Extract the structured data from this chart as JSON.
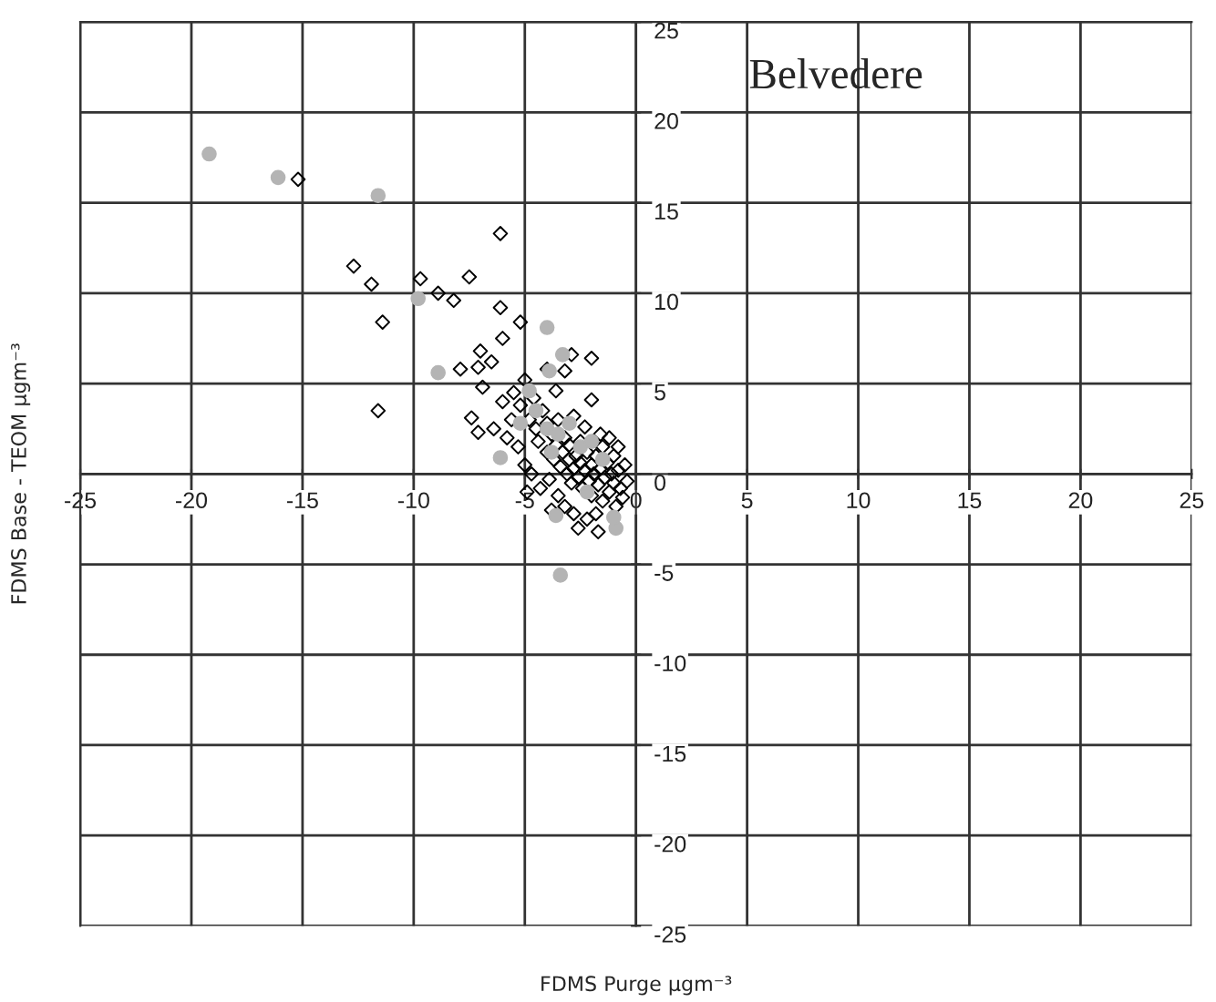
{
  "chart_data": {
    "type": "scatter",
    "title": "Belvedere",
    "xlabel": "FDMS Purge µgm⁻³",
    "ylabel": "FDMS Base - TEOM µgm⁻³",
    "xlim": [
      -25,
      25
    ],
    "ylim": [
      -25,
      25
    ],
    "xticks": [
      -25,
      -20,
      -15,
      -10,
      -5,
      0,
      5,
      10,
      15,
      20,
      25
    ],
    "yticks": [
      -25,
      -20,
      -15,
      -10,
      -5,
      0,
      5,
      10,
      15,
      20,
      25
    ],
    "grid": true,
    "series": [
      {
        "color": "#000000",
        "marker": "diamond",
        "x": [
          -15.2,
          -6.1,
          -12.7,
          -11.9,
          -11.4,
          -11.6,
          -9.7,
          -8.9,
          -8.2,
          -7.5,
          -6.1,
          -5.2,
          -6.0,
          -7.0,
          -6.5,
          -7.1,
          -7.9,
          -6.9,
          -7.4,
          -7.1,
          -6.4,
          -2.9,
          -2.0,
          -2.0,
          -3.2,
          -1.7,
          -5.5,
          -5.2,
          -5.0,
          -4.8,
          -4.6,
          -4.5,
          -4.4,
          -4.2,
          -4.0,
          -4.0,
          -3.8,
          -3.7,
          -3.6,
          -3.5,
          -3.4,
          -3.3,
          -3.2,
          -3.1,
          -3.0,
          -3.0,
          -2.9,
          -2.8,
          -2.7,
          -2.6,
          -2.5,
          -2.5,
          -2.4,
          -2.3,
          -2.2,
          -2.1,
          -2.0,
          -2.0,
          -1.9,
          -1.8,
          -1.7,
          -1.6,
          -1.5,
          -1.5,
          -1.4,
          -1.3,
          -1.2,
          -1.1,
          -1.0,
          -1.0,
          -0.9,
          -0.8,
          -0.7,
          -0.6,
          -0.5,
          -0.4,
          -6.0,
          -5.8,
          -5.3,
          -5.0,
          -4.7,
          -4.3,
          -3.9,
          -3.5,
          -3.2,
          -2.8,
          -2.2,
          -4.0,
          -3.6,
          -2.8,
          -2.3,
          -1.6,
          -1.2,
          -0.8,
          -5.6,
          -4.9,
          -3.8,
          -2.6,
          -1.8
        ],
        "values": [
          16.3,
          13.3,
          11.5,
          10.5,
          8.4,
          3.5,
          10.8,
          10.0,
          9.6,
          10.9,
          9.2,
          8.4,
          7.5,
          6.8,
          6.2,
          5.9,
          5.8,
          4.8,
          3.1,
          2.3,
          2.5,
          6.6,
          6.4,
          4.1,
          5.7,
          -3.2,
          4.5,
          3.8,
          5.2,
          3.0,
          4.2,
          2.5,
          1.8,
          3.5,
          2.8,
          1.2,
          2.2,
          0.8,
          1.6,
          3.0,
          0.4,
          1.2,
          2.0,
          0.0,
          0.8,
          1.6,
          -0.5,
          0.3,
          1.0,
          -0.2,
          0.6,
          1.8,
          -0.8,
          0.2,
          1.2,
          -0.4,
          0.5,
          -1.2,
          0.0,
          1.0,
          -0.6,
          0.3,
          -1.5,
          1.5,
          -0.2,
          0.6,
          -1.0,
          0.0,
          -0.5,
          1.0,
          -1.8,
          0.2,
          -0.8,
          -1.3,
          0.5,
          -0.4,
          4.0,
          2.0,
          1.5,
          0.5,
          0.0,
          -0.8,
          -0.3,
          -1.2,
          -1.8,
          -2.2,
          -2.5,
          5.8,
          4.6,
          3.2,
          2.6,
          2.2,
          2.0,
          1.5,
          3.0,
          -1.0,
          -2.0,
          -3.0,
          -2.2
        ]
      },
      {
        "color": "#b4b4b4",
        "marker": "circle",
        "x": [
          -19.2,
          -16.1,
          -11.6,
          -9.8,
          -4.0,
          -8.9,
          -6.1,
          -3.3,
          -3.9,
          -3.4,
          -0.9,
          -3.6,
          -4.5,
          -4.0,
          -3.5,
          -3.0,
          -2.5,
          -2.0,
          -3.8,
          -1.5,
          -4.8,
          -2.2,
          -1.0,
          -5.2
        ],
        "values": [
          17.7,
          16.4,
          15.4,
          9.7,
          8.1,
          5.6,
          0.9,
          6.6,
          5.7,
          -5.6,
          -3.0,
          -2.3,
          3.5,
          2.5,
          2.2,
          2.8,
          1.5,
          1.8,
          1.2,
          0.8,
          4.6,
          -1.0,
          -2.4,
          2.8
        ]
      }
    ]
  }
}
